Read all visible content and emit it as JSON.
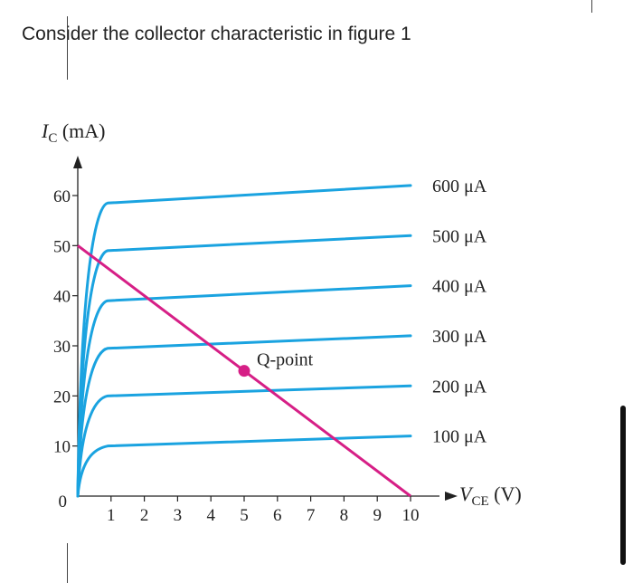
{
  "page": {
    "question": "Consider the collector characteristic in figure 1"
  },
  "colors": {
    "curve": "#1aa3e0",
    "load_line": "#d61f86",
    "axis": "#222222",
    "text": "#222222",
    "background": "#ffffff"
  },
  "chart_data": {
    "type": "line",
    "ylabel": "I",
    "ylabel_sub": "C",
    "ylabel_unit": "(mA)",
    "xlabel": "V",
    "xlabel_sub": "CE",
    "xlabel_unit": "(V)",
    "xlim": [
      0,
      10
    ],
    "ylim": [
      0,
      60
    ],
    "x_ticks": [
      "1",
      "2",
      "3",
      "4",
      "5",
      "6",
      "7",
      "8",
      "9",
      "10"
    ],
    "y_ticks": [
      "0",
      "10",
      "20",
      "30",
      "40",
      "50",
      "60"
    ],
    "series": [
      {
        "name": "100 μA",
        "plateau": [
          [
            0.9,
            10.0
          ],
          [
            10.0,
            12.0
          ]
        ]
      },
      {
        "name": "200 μA",
        "plateau": [
          [
            0.9,
            20.0
          ],
          [
            10.0,
            22.0
          ]
        ]
      },
      {
        "name": "300 μA",
        "plateau": [
          [
            0.9,
            29.5
          ],
          [
            10.0,
            32.0
          ]
        ]
      },
      {
        "name": "400 μA",
        "plateau": [
          [
            0.9,
            39.0
          ],
          [
            10.0,
            42.0
          ]
        ]
      },
      {
        "name": "500 μA",
        "plateau": [
          [
            0.9,
            49.0
          ],
          [
            10.0,
            52.0
          ]
        ]
      },
      {
        "name": "600 μA",
        "plateau": [
          [
            0.9,
            58.5
          ],
          [
            10.0,
            62.0
          ]
        ]
      }
    ],
    "load_line": {
      "x": [
        0,
        10
      ],
      "y": [
        50,
        0
      ]
    },
    "q_point": {
      "label": "Q-point",
      "x": 5.0,
      "y": 25.0
    }
  }
}
